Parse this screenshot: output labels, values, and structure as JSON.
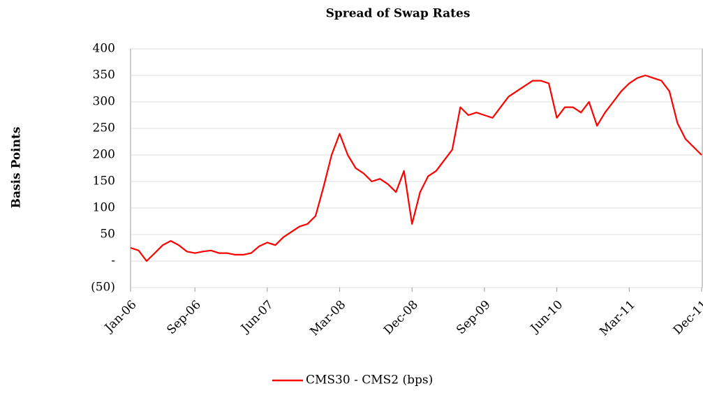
{
  "chart_data": {
    "type": "line",
    "title": "Spread of Swap Rates",
    "y_label": "Basis Points",
    "x": [
      "2006-01",
      "2006-02",
      "2006-03",
      "2006-04",
      "2006-05",
      "2006-06",
      "2006-07",
      "2006-08",
      "2006-09",
      "2006-10",
      "2006-11",
      "2006-12",
      "2007-01",
      "2007-02",
      "2007-03",
      "2007-04",
      "2007-05",
      "2007-06",
      "2007-07",
      "2007-08",
      "2007-09",
      "2007-10",
      "2007-11",
      "2007-12",
      "2008-01",
      "2008-02",
      "2008-03",
      "2008-04",
      "2008-05",
      "2008-06",
      "2008-07",
      "2008-08",
      "2008-09",
      "2008-10",
      "2008-11",
      "2008-12",
      "2009-01",
      "2009-02",
      "2009-03",
      "2009-04",
      "2009-05",
      "2009-06",
      "2009-07",
      "2009-08",
      "2009-09",
      "2009-10",
      "2009-11",
      "2009-12",
      "2010-01",
      "2010-02",
      "2010-03",
      "2010-04",
      "2010-05",
      "2010-06",
      "2010-07",
      "2010-08",
      "2010-09",
      "2010-10",
      "2010-11",
      "2010-12",
      "2011-01",
      "2011-02",
      "2011-03",
      "2011-04",
      "2011-05",
      "2011-06",
      "2011-07",
      "2011-08",
      "2011-09",
      "2011-10",
      "2011-11",
      "2011-12"
    ],
    "series": [
      {
        "name": "CMS30 - CMS2 (bps)",
        "color": "#ff0000",
        "values": [
          25,
          20,
          0,
          15,
          30,
          38,
          30,
          18,
          15,
          18,
          20,
          15,
          15,
          12,
          12,
          15,
          28,
          35,
          30,
          45,
          55,
          65,
          70,
          85,
          140,
          200,
          240,
          200,
          175,
          165,
          150,
          155,
          145,
          130,
          170,
          70,
          130,
          160,
          170,
          190,
          210,
          290,
          275,
          280,
          275,
          270,
          290,
          310,
          320,
          330,
          340,
          340,
          335,
          270,
          290,
          290,
          280,
          300,
          255,
          280,
          300,
          320,
          335,
          345,
          350,
          345,
          340,
          320,
          260,
          230,
          215,
          200
        ]
      }
    ],
    "xlim": [
      "2006-01",
      "2011-12"
    ],
    "xticks": [
      {
        "value": "2006-01",
        "label": "Jan-06"
      },
      {
        "value": "2006-09",
        "label": "Sep-06"
      },
      {
        "value": "2007-06",
        "label": "Jun-07"
      },
      {
        "value": "2008-03",
        "label": "Mar-08"
      },
      {
        "value": "2008-12",
        "label": "Dec-08"
      },
      {
        "value": "2009-09",
        "label": "Sep-09"
      },
      {
        "value": "2010-06",
        "label": "Jun-10"
      },
      {
        "value": "2011-03",
        "label": "Mar-11"
      },
      {
        "value": "2011-12",
        "label": "Dec-11"
      }
    ],
    "ylim": [
      -50,
      400
    ],
    "yticks": [
      400,
      350,
      300,
      250,
      200,
      150,
      100,
      50,
      {
        "value": 0,
        "label": "-"
      },
      {
        "value": -50,
        "label": "(50)"
      }
    ],
    "legend": "bottom"
  }
}
